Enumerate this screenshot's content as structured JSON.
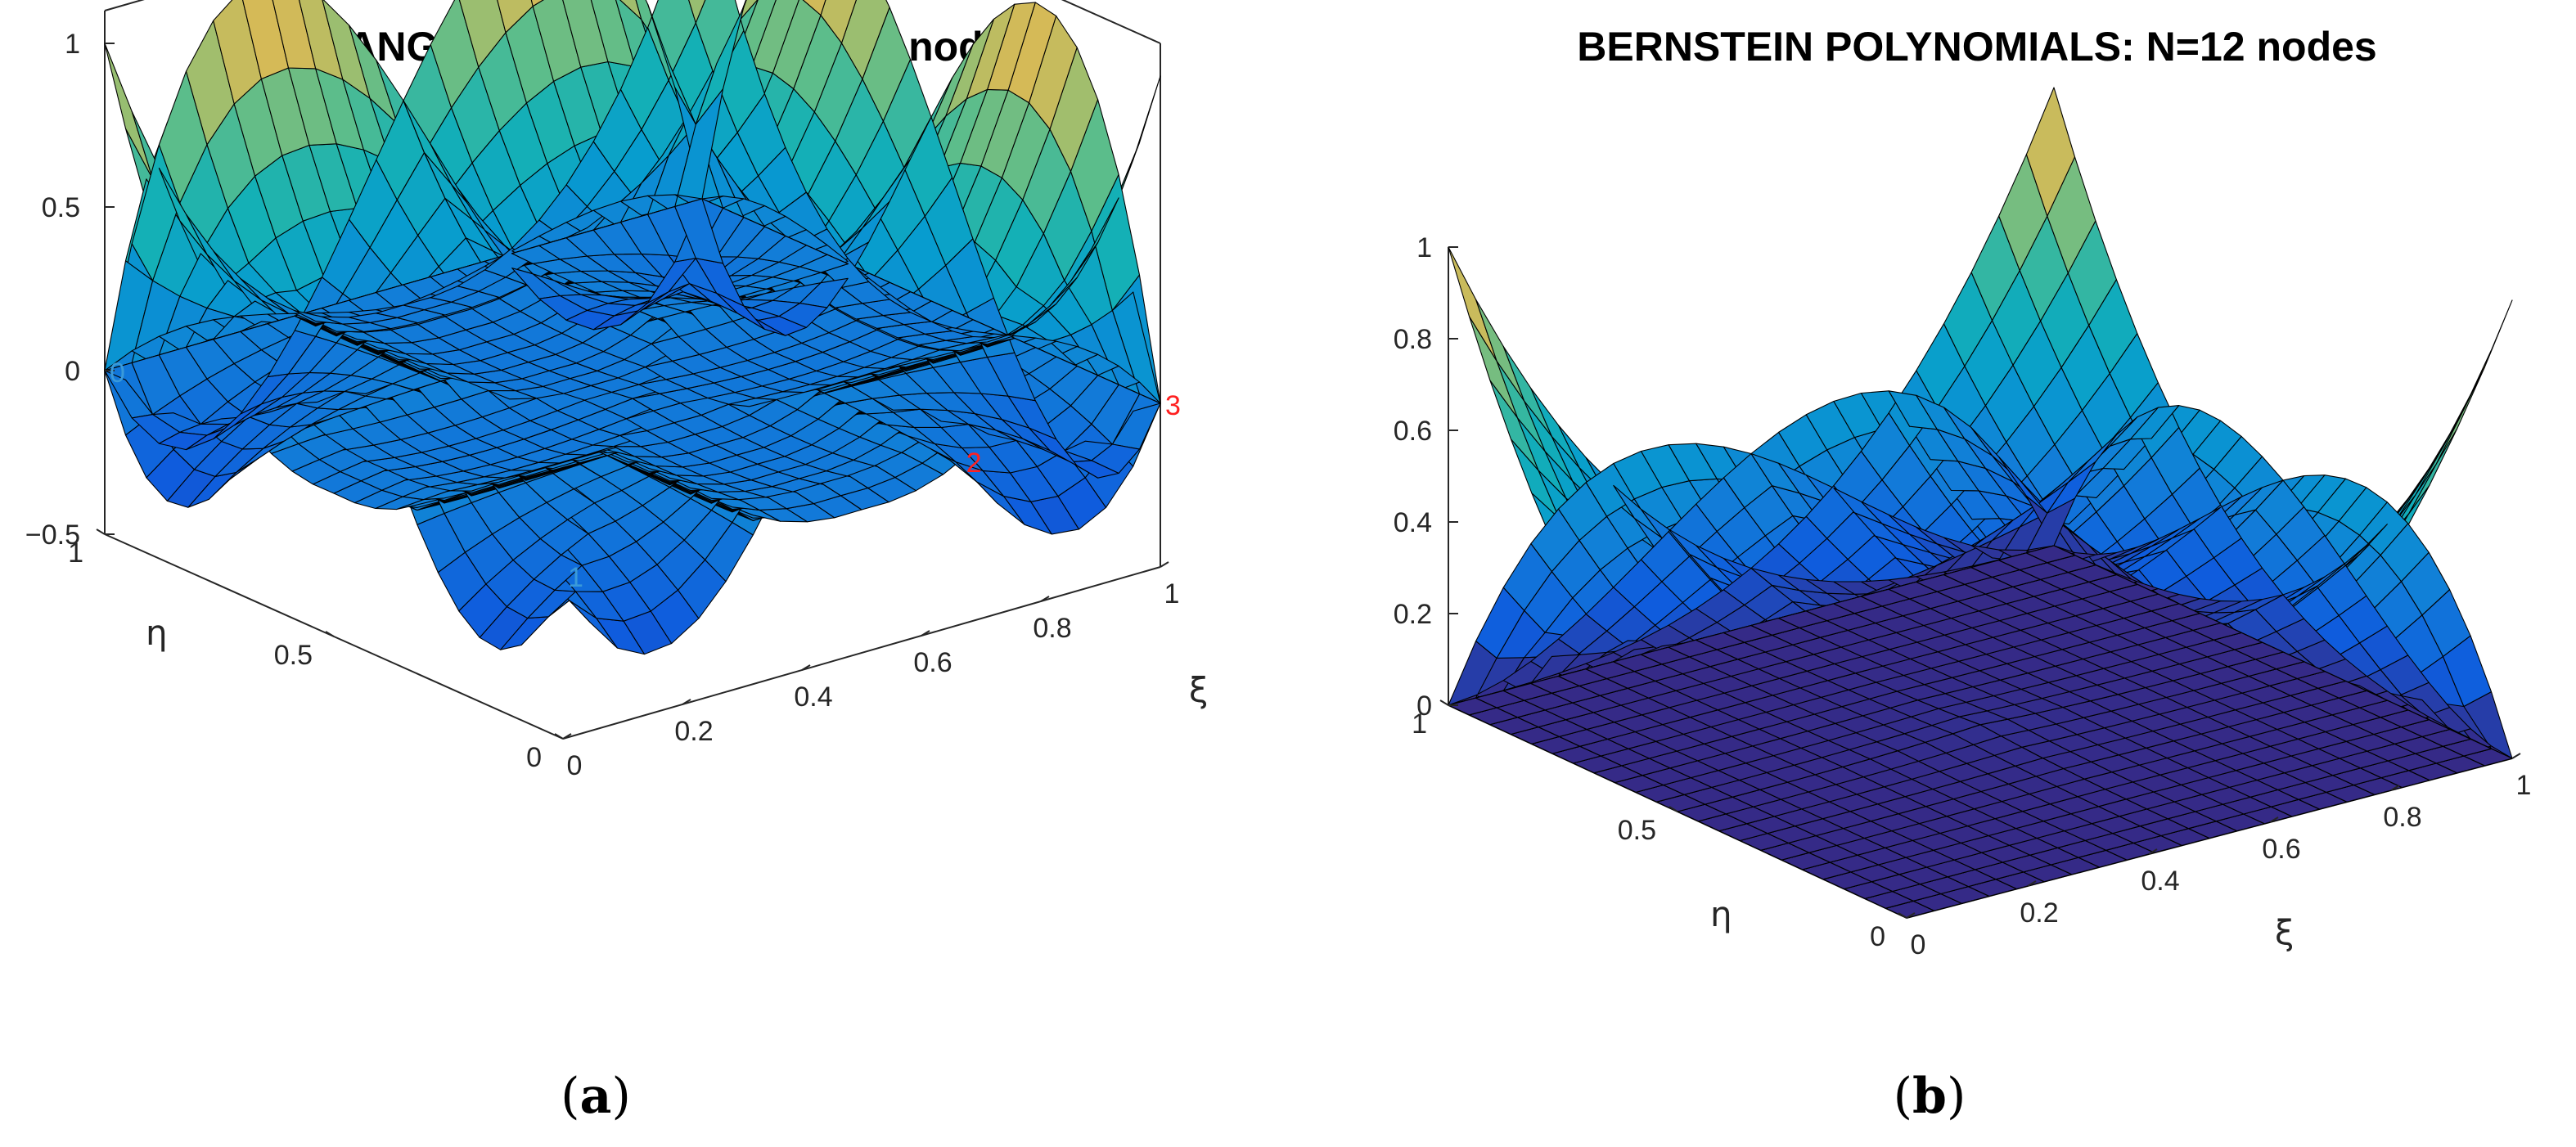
{
  "chart_data": [
    {
      "type": "surface3d",
      "title": "LAGRANGE POLYNOMIALS: N=12 nodes",
      "xlabel": "ξ",
      "ylabel": "η",
      "zlabel": "",
      "xlim": [
        0,
        1
      ],
      "ylim": [
        0,
        1
      ],
      "zlim": [
        -0.5,
        1.1
      ],
      "xticks": [
        "0",
        "0.2",
        "0.4",
        "0.6",
        "0.8",
        "1"
      ],
      "yticks": [
        "0",
        "0.5",
        "1"
      ],
      "zticks": [
        "-0.5",
        "0",
        "0.5",
        "1"
      ],
      "colormap": "parula",
      "node_labels": [
        {
          "text": "0",
          "color": "#3a9ad9"
        },
        {
          "text": "1",
          "color": "#3a9ad9"
        },
        {
          "text": "2",
          "color": "#ff2020"
        },
        {
          "text": "3",
          "color": "#ff2020"
        }
      ],
      "caption": "(a)"
    },
    {
      "type": "surface3d",
      "title": "BERNSTEIN POLYNOMIALS: N=12 nodes",
      "xlabel": "ξ",
      "ylabel": "η",
      "zlabel": "",
      "xlim": [
        0,
        1
      ],
      "ylim": [
        0,
        1
      ],
      "zlim": [
        0,
        1
      ],
      "xticks": [
        "0",
        "0.2",
        "0.4",
        "0.6",
        "0.8",
        "1"
      ],
      "yticks": [
        "0",
        "0.5",
        "1"
      ],
      "zticks": [
        "0",
        "0.2",
        "0.4",
        "0.6",
        "0.8",
        "1"
      ],
      "colormap": "parula",
      "caption": "(b)"
    }
  ]
}
